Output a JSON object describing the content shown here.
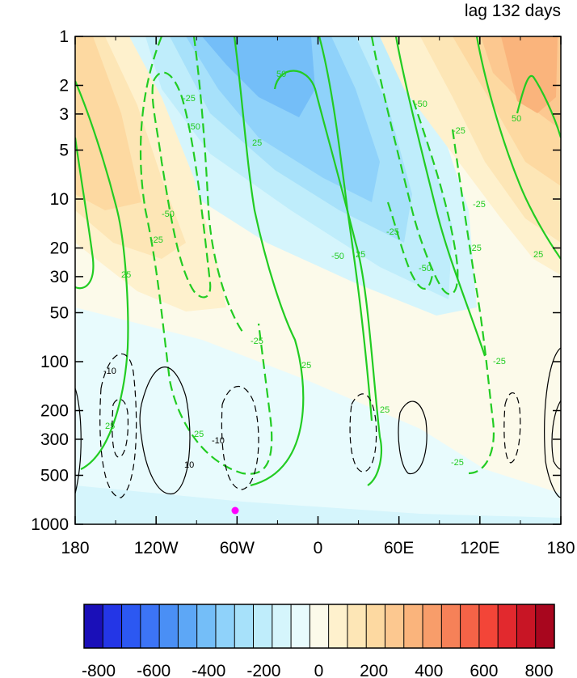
{
  "chart_data": {
    "type": "heatmap",
    "title": "lag 132 days",
    "x_ticks": [
      "180",
      "120W",
      "60W",
      "0",
      "60E",
      "120E",
      "180"
    ],
    "y_ticks": [
      "1",
      "2",
      "3",
      "5",
      "10",
      "20",
      "30",
      "50",
      "100",
      "200",
      "300",
      "500",
      "1000"
    ],
    "y_scale": "log",
    "y_reversed": true,
    "colorbar": {
      "orientation": "horizontal",
      "min": -800,
      "max": 800,
      "step": 50,
      "tick_labels": [
        "-800",
        "-600",
        "-400",
        "-200",
        "0",
        "200",
        "400",
        "600",
        "800"
      ],
      "colors": [
        "#1a0fb8",
        "#2436e6",
        "#2c58f2",
        "#3c74f6",
        "#4a8ff5",
        "#5da7f6",
        "#74bef8",
        "#8fd2fa",
        "#a7e1fa",
        "#bfedfb",
        "#d5f5fc",
        "#e8fbfd",
        "#fcfaea",
        "#fef1cd",
        "#fde6b6",
        "#fdd9a1",
        "#fcc890",
        "#fab47c",
        "#f89d6a",
        "#f68158",
        "#f56347",
        "#f34538",
        "#e2292e",
        "#c81525",
        "#a8061e"
      ]
    },
    "contour_labels_green": [
      "25",
      "25",
      "25",
      "-25",
      "-25",
      "-50",
      "-50",
      "-25",
      "-25",
      "25",
      "-25",
      "25",
      "-50",
      "25",
      "25",
      "50",
      "-50",
      "-25",
      "-50",
      "-25",
      "-25",
      "25",
      "-25",
      "50"
    ],
    "contour_labels_black": [
      "-10",
      "-10",
      "10"
    ],
    "marker": {
      "lon": -60,
      "p": 850,
      "color": "#ff00ff"
    }
  }
}
